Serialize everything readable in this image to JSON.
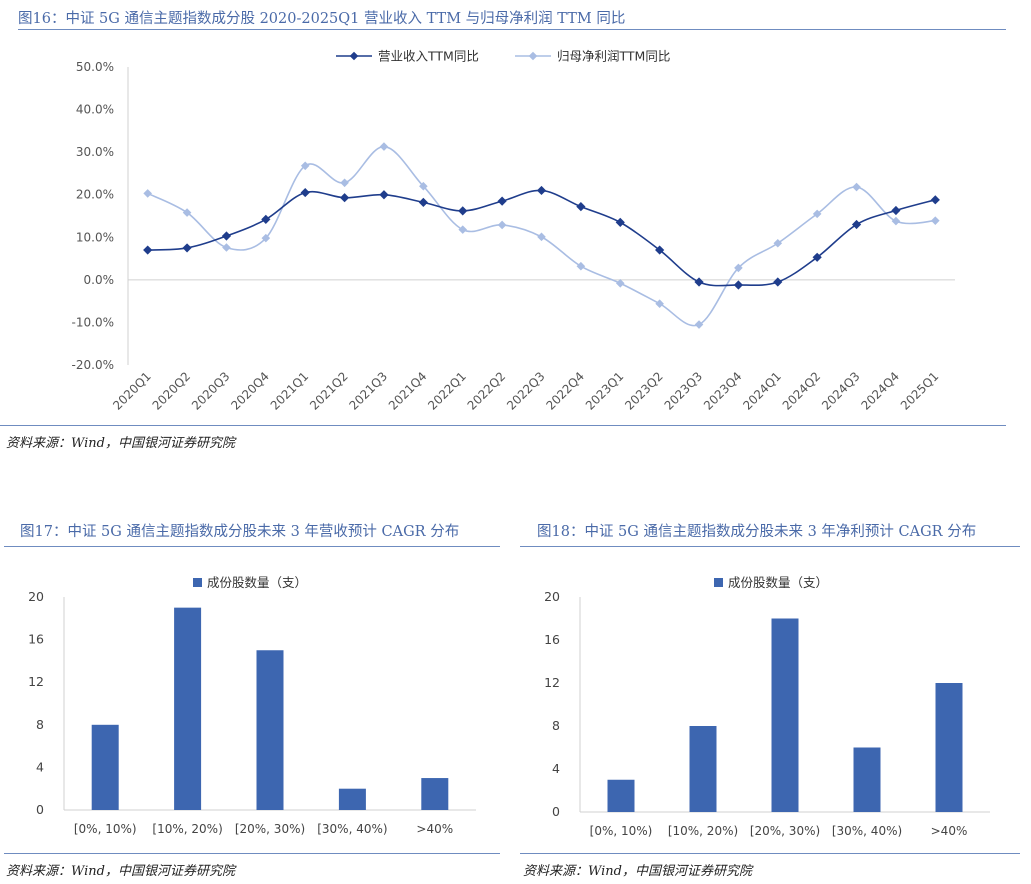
{
  "fig16": {
    "title": "图16：中证 5G 通信主题指数成分股 2020-2025Q1 营业收入 TTM 与归母净利润 TTM 同比",
    "source": "资料来源：Wind，中国银河证券研究院"
  },
  "fig17": {
    "title": "图17：中证 5G 通信主题指数成分股未来 3 年营收预计 CAGR 分布",
    "source": "资料来源：Wind，中国银河证券研究院"
  },
  "fig18": {
    "title": "图18：中证 5G 通信主题指数成分股未来 3 年净利预计 CAGR 分布",
    "source": "资料来源：Wind，中国银河证券研究院"
  },
  "chart_data": [
    {
      "type": "line",
      "title": "",
      "x": [
        "2020Q1",
        "2020Q2",
        "2020Q3",
        "2020Q4",
        "2021Q1",
        "2021Q2",
        "2021Q3",
        "2021Q4",
        "2022Q1",
        "2022Q2",
        "2022Q3",
        "2022Q4",
        "2023Q1",
        "2023Q2",
        "2023Q3",
        "2023Q4",
        "2024Q1",
        "2024Q2",
        "2024Q3",
        "2024Q4",
        "2025Q1"
      ],
      "series": [
        {
          "name": "营业收入TTM同比",
          "color": "#1f3d8c",
          "values": [
            7.0,
            7.5,
            10.3,
            14.2,
            20.5,
            19.3,
            20.0,
            18.2,
            16.2,
            18.5,
            21.0,
            17.2,
            13.5,
            7.0,
            -0.5,
            -1.2,
            -0.5,
            5.3,
            13.0,
            16.3,
            18.8
          ]
        },
        {
          "name": "归母净利润TTM同比",
          "color": "#a9bde3",
          "values": [
            20.3,
            15.8,
            7.6,
            9.8,
            26.8,
            22.8,
            31.3,
            22.0,
            11.8,
            12.9,
            10.1,
            3.2,
            -0.8,
            -5.6,
            -10.5,
            2.8,
            8.6,
            15.5,
            21.8,
            13.8,
            13.9
          ]
        }
      ],
      "ylim": [
        -20,
        50
      ],
      "yticks": [
        "-20.0%",
        "-10.0%",
        "0.0%",
        "10.0%",
        "20.0%",
        "30.0%",
        "40.0%",
        "50.0%"
      ],
      "ytick_values": [
        -20,
        -10,
        0,
        10,
        20,
        30,
        40,
        50
      ],
      "legend": "top-center"
    },
    {
      "type": "bar",
      "title": "",
      "legend_label": "成份股数量（支）",
      "color": "#3d66b0",
      "categories": [
        "[0%, 10%)",
        "[10%, 20%)",
        "[20%, 30%)",
        "[30%, 40%)",
        ">40%"
      ],
      "values": [
        8,
        19,
        15,
        2,
        3
      ],
      "ylim": [
        0,
        20
      ],
      "yticks": [
        "0",
        "4",
        "8",
        "12",
        "16",
        "20"
      ],
      "ytick_values": [
        0,
        4,
        8,
        12,
        16,
        20
      ]
    },
    {
      "type": "bar",
      "title": "",
      "legend_label": "成份股数量（支）",
      "color": "#3d66b0",
      "categories": [
        "[0%, 10%)",
        "[10%, 20%)",
        "[20%, 30%)",
        "[30%, 40%)",
        ">40%"
      ],
      "values": [
        3,
        8,
        18,
        6,
        12
      ],
      "ylim": [
        0,
        20
      ],
      "yticks": [
        "0",
        "4",
        "8",
        "12",
        "16",
        "20"
      ],
      "ytick_values": [
        0,
        4,
        8,
        12,
        16,
        20
      ]
    }
  ]
}
